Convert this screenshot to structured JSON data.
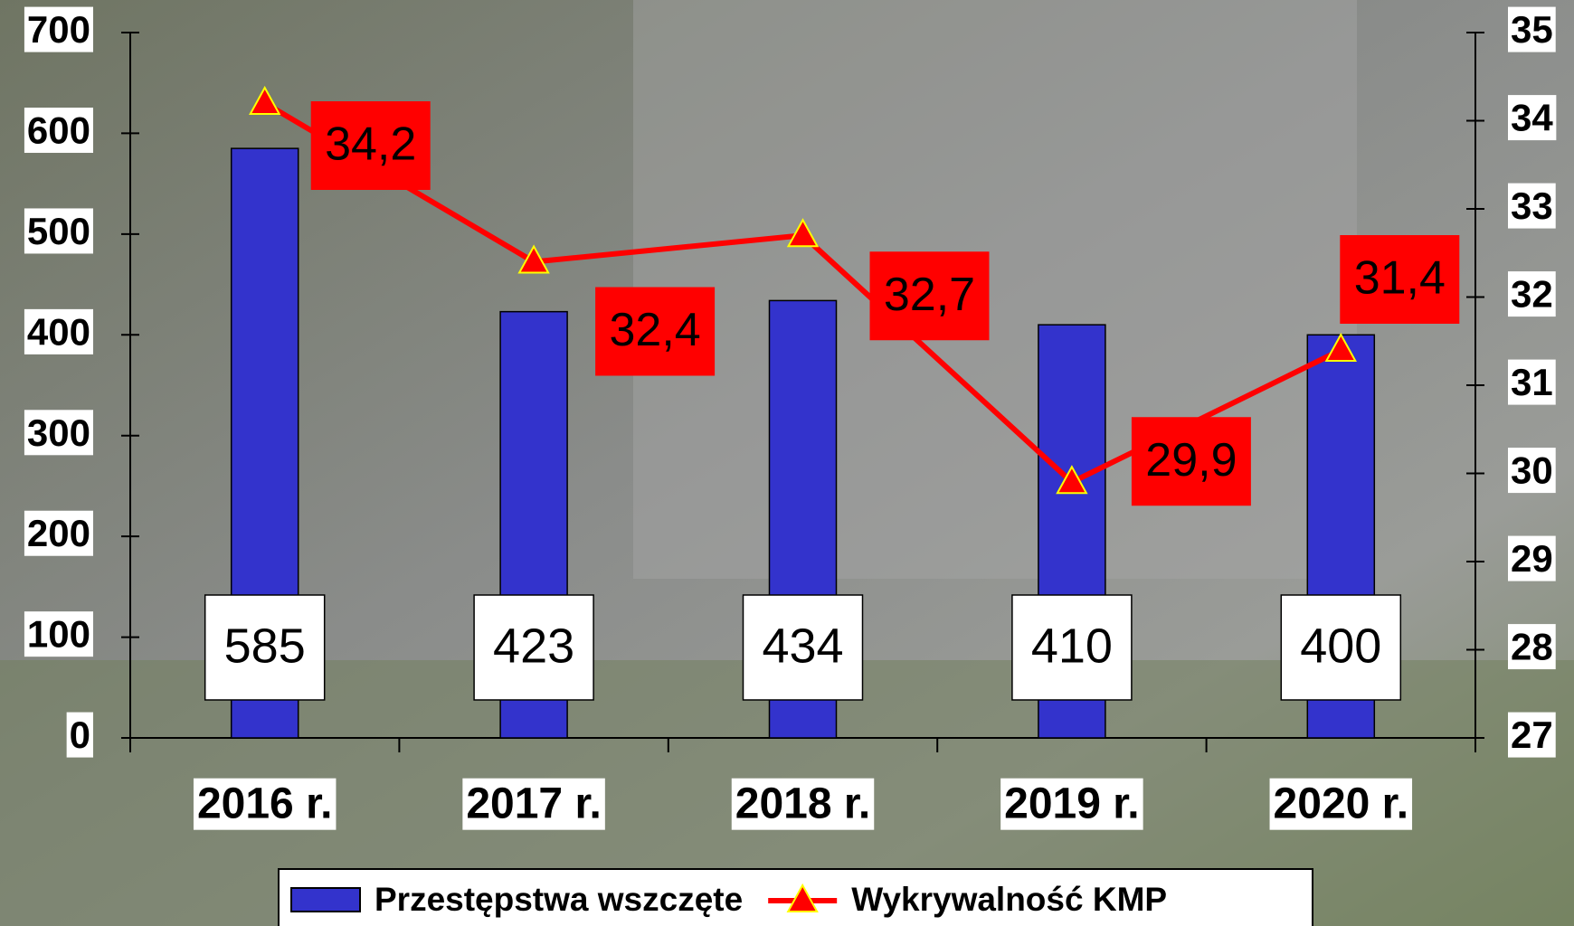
{
  "chart_data": {
    "type": "bar-line",
    "categories": [
      "2016 r.",
      "2017 r.",
      "2018 r.",
      "2019 r.",
      "2020 r."
    ],
    "series": [
      {
        "name": "Przestępstwa wszczęte",
        "type": "bar",
        "color": "#3333cc",
        "values": [
          585,
          423,
          434,
          410,
          400
        ]
      },
      {
        "name": "Wykrywalność KMP",
        "type": "line",
        "axis": "y2",
        "color": "#ff0000",
        "marker_color": "#ffff00",
        "values": [
          34.2,
          32.4,
          32.7,
          29.9,
          31.4
        ],
        "value_labels": [
          "34,2",
          "32,4",
          "32,7",
          "29,9",
          "31,4"
        ]
      }
    ],
    "ylim": [
      0,
      700
    ],
    "yticks": [
      0,
      100,
      200,
      300,
      400,
      500,
      600,
      700
    ],
    "y2lim": [
      27,
      35
    ],
    "y2ticks": [
      27,
      28,
      29,
      30,
      31,
      32,
      33,
      34,
      35
    ],
    "legend": "bottom"
  }
}
